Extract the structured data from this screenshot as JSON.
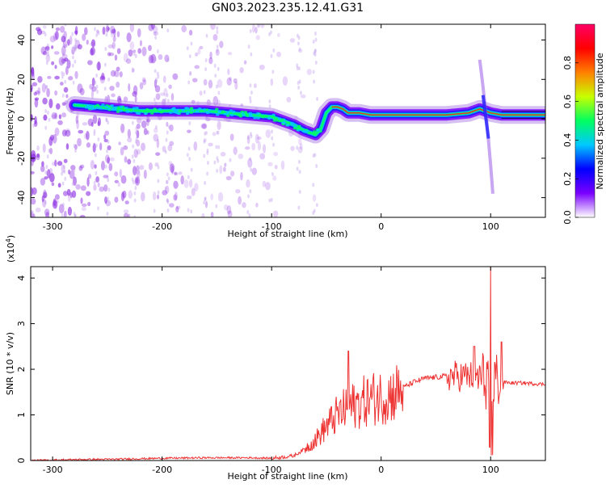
{
  "title": "GN03.2023.235.12.41.G31",
  "chart_data": [
    {
      "type": "heatmap",
      "xlabel": "Height of straight line (km)",
      "ylabel": "Frequency (Hz)",
      "xlim": [
        -320,
        150
      ],
      "ylim": [
        -50,
        48
      ],
      "xticks": [
        -300,
        -200,
        -100,
        0,
        100
      ],
      "yticks": [
        -40,
        -20,
        0,
        20,
        40
      ],
      "colorbar": {
        "label": "Normalized spectral amplitude",
        "range": [
          0,
          1
        ],
        "ticks": [
          "0.0",
          "0.2",
          "0.4",
          "0.6",
          "0.8"
        ],
        "colors": [
          "#ffffff",
          "#7a00ff",
          "#0000ff",
          "#00c8ff",
          "#00ff60",
          "#c8ff00",
          "#ff8000",
          "#ff0000",
          "#ff0066"
        ]
      },
      "ridge": {
        "x": [
          -280,
          -260,
          -240,
          -220,
          -200,
          -180,
          -160,
          -140,
          -120,
          -100,
          -90,
          -80,
          -70,
          -60,
          -55,
          -50,
          -45,
          -40,
          -35,
          -30,
          -20,
          -10,
          0,
          20,
          40,
          60,
          80,
          90,
          95,
          100,
          110,
          130,
          150
        ],
        "y": [
          7,
          6,
          5,
          4,
          4,
          4,
          4,
          3,
          2,
          1,
          -1,
          -3,
          -6,
          -8,
          -5,
          3,
          6,
          6,
          5,
          3,
          3,
          2,
          2,
          2,
          2,
          2,
          3,
          5,
          4,
          3,
          2,
          2,
          2
        ]
      }
    },
    {
      "type": "line",
      "xlabel": "Height of straight line (km)",
      "ylabel": "SNR (10 * v/v)",
      "multiplier": "(x10",
      "multiplier_exp": "4",
      "multiplier_close": ")",
      "xlim": [
        -320,
        150
      ],
      "ylim": [
        0,
        4.25
      ],
      "xticks": [
        -300,
        -200,
        -100,
        0,
        100
      ],
      "yticks": [
        0,
        1,
        2,
        3,
        4
      ],
      "color": "#ee3333",
      "series": [
        {
          "x": [
            -320,
            -280,
            -240,
            -200,
            -160,
            -120,
            -100,
            -80,
            -70,
            -60,
            -50,
            -40,
            -30,
            -20,
            -10,
            0,
            10,
            20,
            30,
            40,
            60,
            80,
            90,
            95,
            100,
            105,
            110,
            120,
            130,
            150
          ],
          "y": [
            0.0,
            0.02,
            0.03,
            0.05,
            0.06,
            0.06,
            0.05,
            0.1,
            0.25,
            0.45,
            0.75,
            1.0,
            1.15,
            1.25,
            1.35,
            1.4,
            1.45,
            1.6,
            1.72,
            1.8,
            1.85,
            1.85,
            1.82,
            1.8,
            1.78,
            1.76,
            1.72,
            1.7,
            1.7,
            1.67
          ]
        }
      ],
      "spikes": [
        {
          "x": -30,
          "y": 2.4
        },
        {
          "x": 100,
          "y": 4.25
        },
        {
          "x": 85,
          "y": 2.5
        },
        {
          "x": 110,
          "y": 2.6
        }
      ]
    }
  ]
}
